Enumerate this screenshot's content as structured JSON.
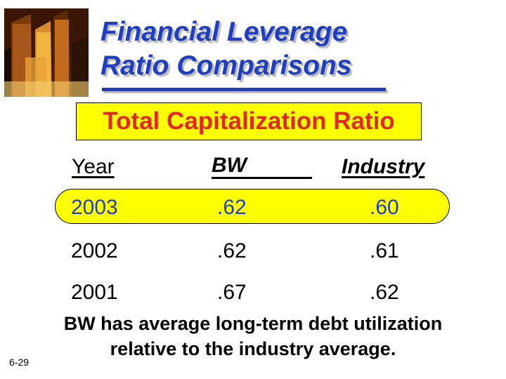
{
  "slide": {
    "title_line1": "Financial Leverage",
    "title_line2": "Ratio Comparisons",
    "subtitle": "Total Capitalization Ratio",
    "headers": {
      "year": "Year",
      "bw": "BW",
      "industry": "Industry"
    },
    "rows": [
      {
        "year": "2003",
        "bw": ".62",
        "industry": ".60"
      },
      {
        "year": "2002",
        "bw": ".62",
        "industry": ".61"
      },
      {
        "year": "2001",
        "bw": ".67",
        "industry": ".62"
      }
    ],
    "note_line1": "BW has average long-term debt utilization",
    "note_line2": "relative to the industry average.",
    "page_number": "6-29"
  },
  "colors": {
    "title": "#1f3fbf",
    "subtitle_text": "#e0281e",
    "highlight_fill": "#ffff00",
    "highlight_row_text": "#1f3fbf"
  },
  "icons": {
    "photo": "city-skyscrapers-photo"
  }
}
